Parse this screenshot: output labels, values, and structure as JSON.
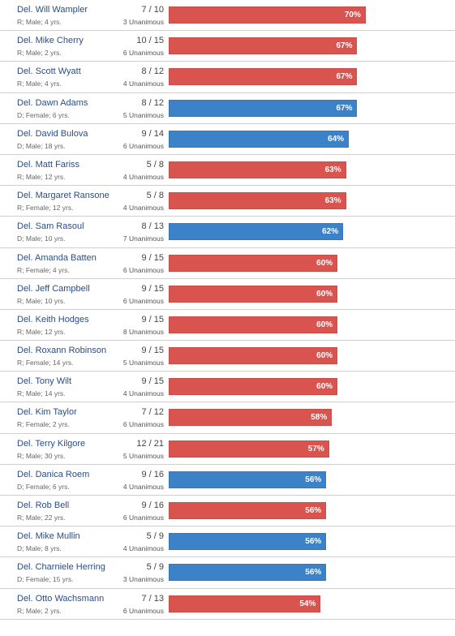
{
  "colors": {
    "R": "#d9534f",
    "D": "#3b82c9"
  },
  "chart_data": {
    "type": "bar",
    "orientation": "horizontal",
    "max_value": 100,
    "rows": [
      {
        "name": "Del. Will Wampler",
        "meta": "R; Male; 4 yrs.",
        "party": "R",
        "fraction": "7 / 10",
        "unanimous": "3 Unanimous",
        "value": 70,
        "label": "70%"
      },
      {
        "name": "Del. Mike Cherry",
        "meta": "R; Male; 2 yrs.",
        "party": "R",
        "fraction": "10 / 15",
        "unanimous": "6 Unanimous",
        "value": 67,
        "label": "67%"
      },
      {
        "name": "Del. Scott Wyatt",
        "meta": "R; Male; 4 yrs.",
        "party": "R",
        "fraction": "8 / 12",
        "unanimous": "4 Unanimous",
        "value": 67,
        "label": "67%"
      },
      {
        "name": "Del. Dawn Adams",
        "meta": "D; Female; 6 yrs.",
        "party": "D",
        "fraction": "8 / 12",
        "unanimous": "5 Unanimous",
        "value": 67,
        "label": "67%"
      },
      {
        "name": "Del. David Bulova",
        "meta": "D; Male; 18 yrs.",
        "party": "D",
        "fraction": "9 / 14",
        "unanimous": "6 Unanimous",
        "value": 64,
        "label": "64%"
      },
      {
        "name": "Del. Matt Fariss",
        "meta": "R; Male; 12 yrs.",
        "party": "R",
        "fraction": "5 / 8",
        "unanimous": "4 Unanimous",
        "value": 63,
        "label": "63%"
      },
      {
        "name": "Del. Margaret Ransone",
        "meta": "R; Female; 12 yrs.",
        "party": "R",
        "fraction": "5 / 8",
        "unanimous": "4 Unanimous",
        "value": 63,
        "label": "63%"
      },
      {
        "name": "Del. Sam Rasoul",
        "meta": "D; Male; 10 yrs.",
        "party": "D",
        "fraction": "8 / 13",
        "unanimous": "7 Unanimous",
        "value": 62,
        "label": "62%"
      },
      {
        "name": "Del. Amanda Batten",
        "meta": "R; Female; 4 yrs.",
        "party": "R",
        "fraction": "9 / 15",
        "unanimous": "6 Unanimous",
        "value": 60,
        "label": "60%"
      },
      {
        "name": "Del. Jeff Campbell",
        "meta": "R; Male; 10 yrs.",
        "party": "R",
        "fraction": "9 / 15",
        "unanimous": "6 Unanimous",
        "value": 60,
        "label": "60%"
      },
      {
        "name": "Del. Keith Hodges",
        "meta": "R; Male; 12 yrs.",
        "party": "R",
        "fraction": "9 / 15",
        "unanimous": "8 Unanimous",
        "value": 60,
        "label": "60%"
      },
      {
        "name": "Del. Roxann Robinson",
        "meta": "R; Female; 14 yrs.",
        "party": "R",
        "fraction": "9 / 15",
        "unanimous": "5 Unanimous",
        "value": 60,
        "label": "60%"
      },
      {
        "name": "Del. Tony Wilt",
        "meta": "R; Male; 14 yrs.",
        "party": "R",
        "fraction": "9 / 15",
        "unanimous": "4 Unanimous",
        "value": 60,
        "label": "60%"
      },
      {
        "name": "Del. Kim Taylor",
        "meta": "R; Female; 2 yrs.",
        "party": "R",
        "fraction": "7 / 12",
        "unanimous": "6 Unanimous",
        "value": 58,
        "label": "58%"
      },
      {
        "name": "Del. Terry Kilgore",
        "meta": "R; Male; 30 yrs.",
        "party": "R",
        "fraction": "12 / 21",
        "unanimous": "5 Unanimous",
        "value": 57,
        "label": "57%"
      },
      {
        "name": "Del. Danica Roem",
        "meta": "D; Female; 6 yrs.",
        "party": "D",
        "fraction": "9 / 16",
        "unanimous": "4 Unanimous",
        "value": 56,
        "label": "56%"
      },
      {
        "name": "Del. Rob Bell",
        "meta": "R; Male; 22 yrs.",
        "party": "R",
        "fraction": "9 / 16",
        "unanimous": "6 Unanimous",
        "value": 56,
        "label": "56%"
      },
      {
        "name": "Del. Mike Mullin",
        "meta": "D; Male; 8 yrs.",
        "party": "D",
        "fraction": "5 / 9",
        "unanimous": "4 Unanimous",
        "value": 56,
        "label": "56%"
      },
      {
        "name": "Del. Charniele Herring",
        "meta": "D; Female; 15 yrs.",
        "party": "D",
        "fraction": "5 / 9",
        "unanimous": "3 Unanimous",
        "value": 56,
        "label": "56%"
      },
      {
        "name": "Del. Otto Wachsmann",
        "meta": "R; Male; 2 yrs.",
        "party": "R",
        "fraction": "7 / 13",
        "unanimous": "6 Unanimous",
        "value": 54,
        "label": "54%"
      }
    ]
  }
}
